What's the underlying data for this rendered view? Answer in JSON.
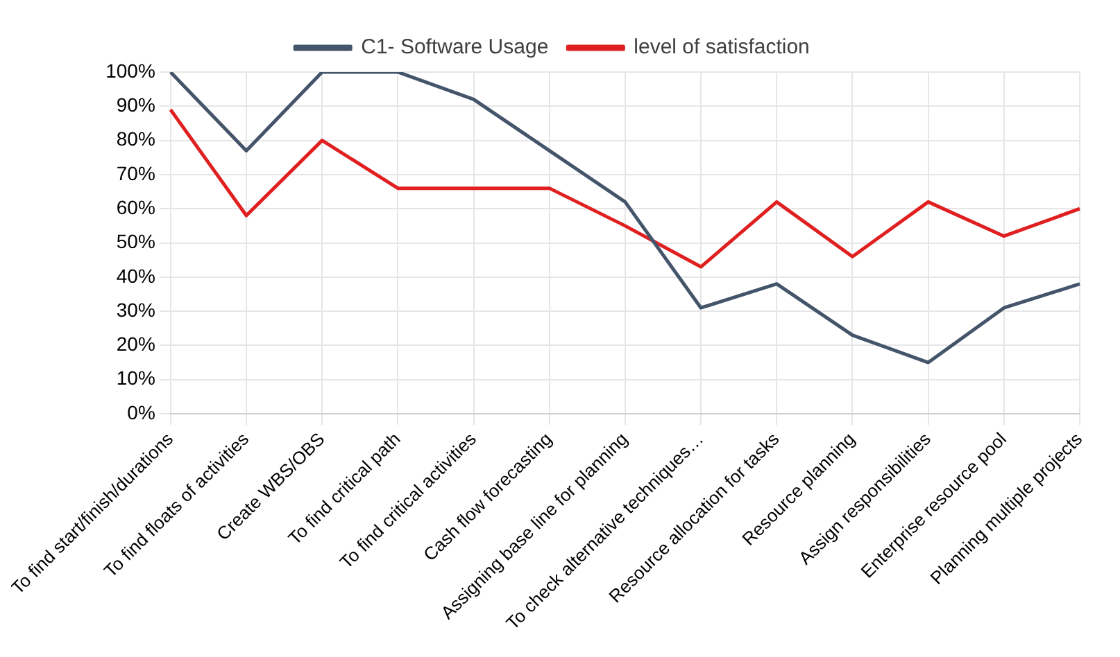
{
  "chart_data": {
    "type": "line",
    "categories": [
      "To find start/finish/durations",
      "To find floats of activities",
      "Create WBS/OBS",
      "To find critical path",
      "To find critical activities",
      "Cash flow forecasting",
      "Assigning base line for planning",
      "To check alternative techniques…",
      "Resource allocation for tasks",
      "Resource planning",
      "Assign responsibilities",
      "Enterprise resource pool",
      "Planning multiple projects"
    ],
    "series": [
      {
        "name": "C1- Software Usage",
        "color": "#44546a",
        "values": [
          100,
          77,
          100,
          100,
          92,
          77,
          62,
          31,
          38,
          23,
          15,
          31,
          38
        ]
      },
      {
        "name": "level of satisfaction",
        "color": "#e02020",
        "values": [
          89,
          58,
          80,
          66,
          66,
          66,
          55,
          43,
          62,
          46,
          62,
          52,
          60
        ]
      }
    ],
    "ylim": [
      0,
      100
    ],
    "yticks": [
      {
        "value": 0,
        "label": "0%"
      },
      {
        "value": 10,
        "label": "10%"
      },
      {
        "value": 20,
        "label": "20%"
      },
      {
        "value": 30,
        "label": "30%"
      },
      {
        "value": 40,
        "label": "40%"
      },
      {
        "value": 50,
        "label": "50%"
      },
      {
        "value": 60,
        "label": "60%"
      },
      {
        "value": 70,
        "label": "70%"
      },
      {
        "value": 80,
        "label": "80%"
      },
      {
        "value": 90,
        "label": "90%"
      },
      {
        "value": 100,
        "label": "100%"
      }
    ],
    "grid": true,
    "legend": "top",
    "marker": "none",
    "line_style": "solid"
  }
}
